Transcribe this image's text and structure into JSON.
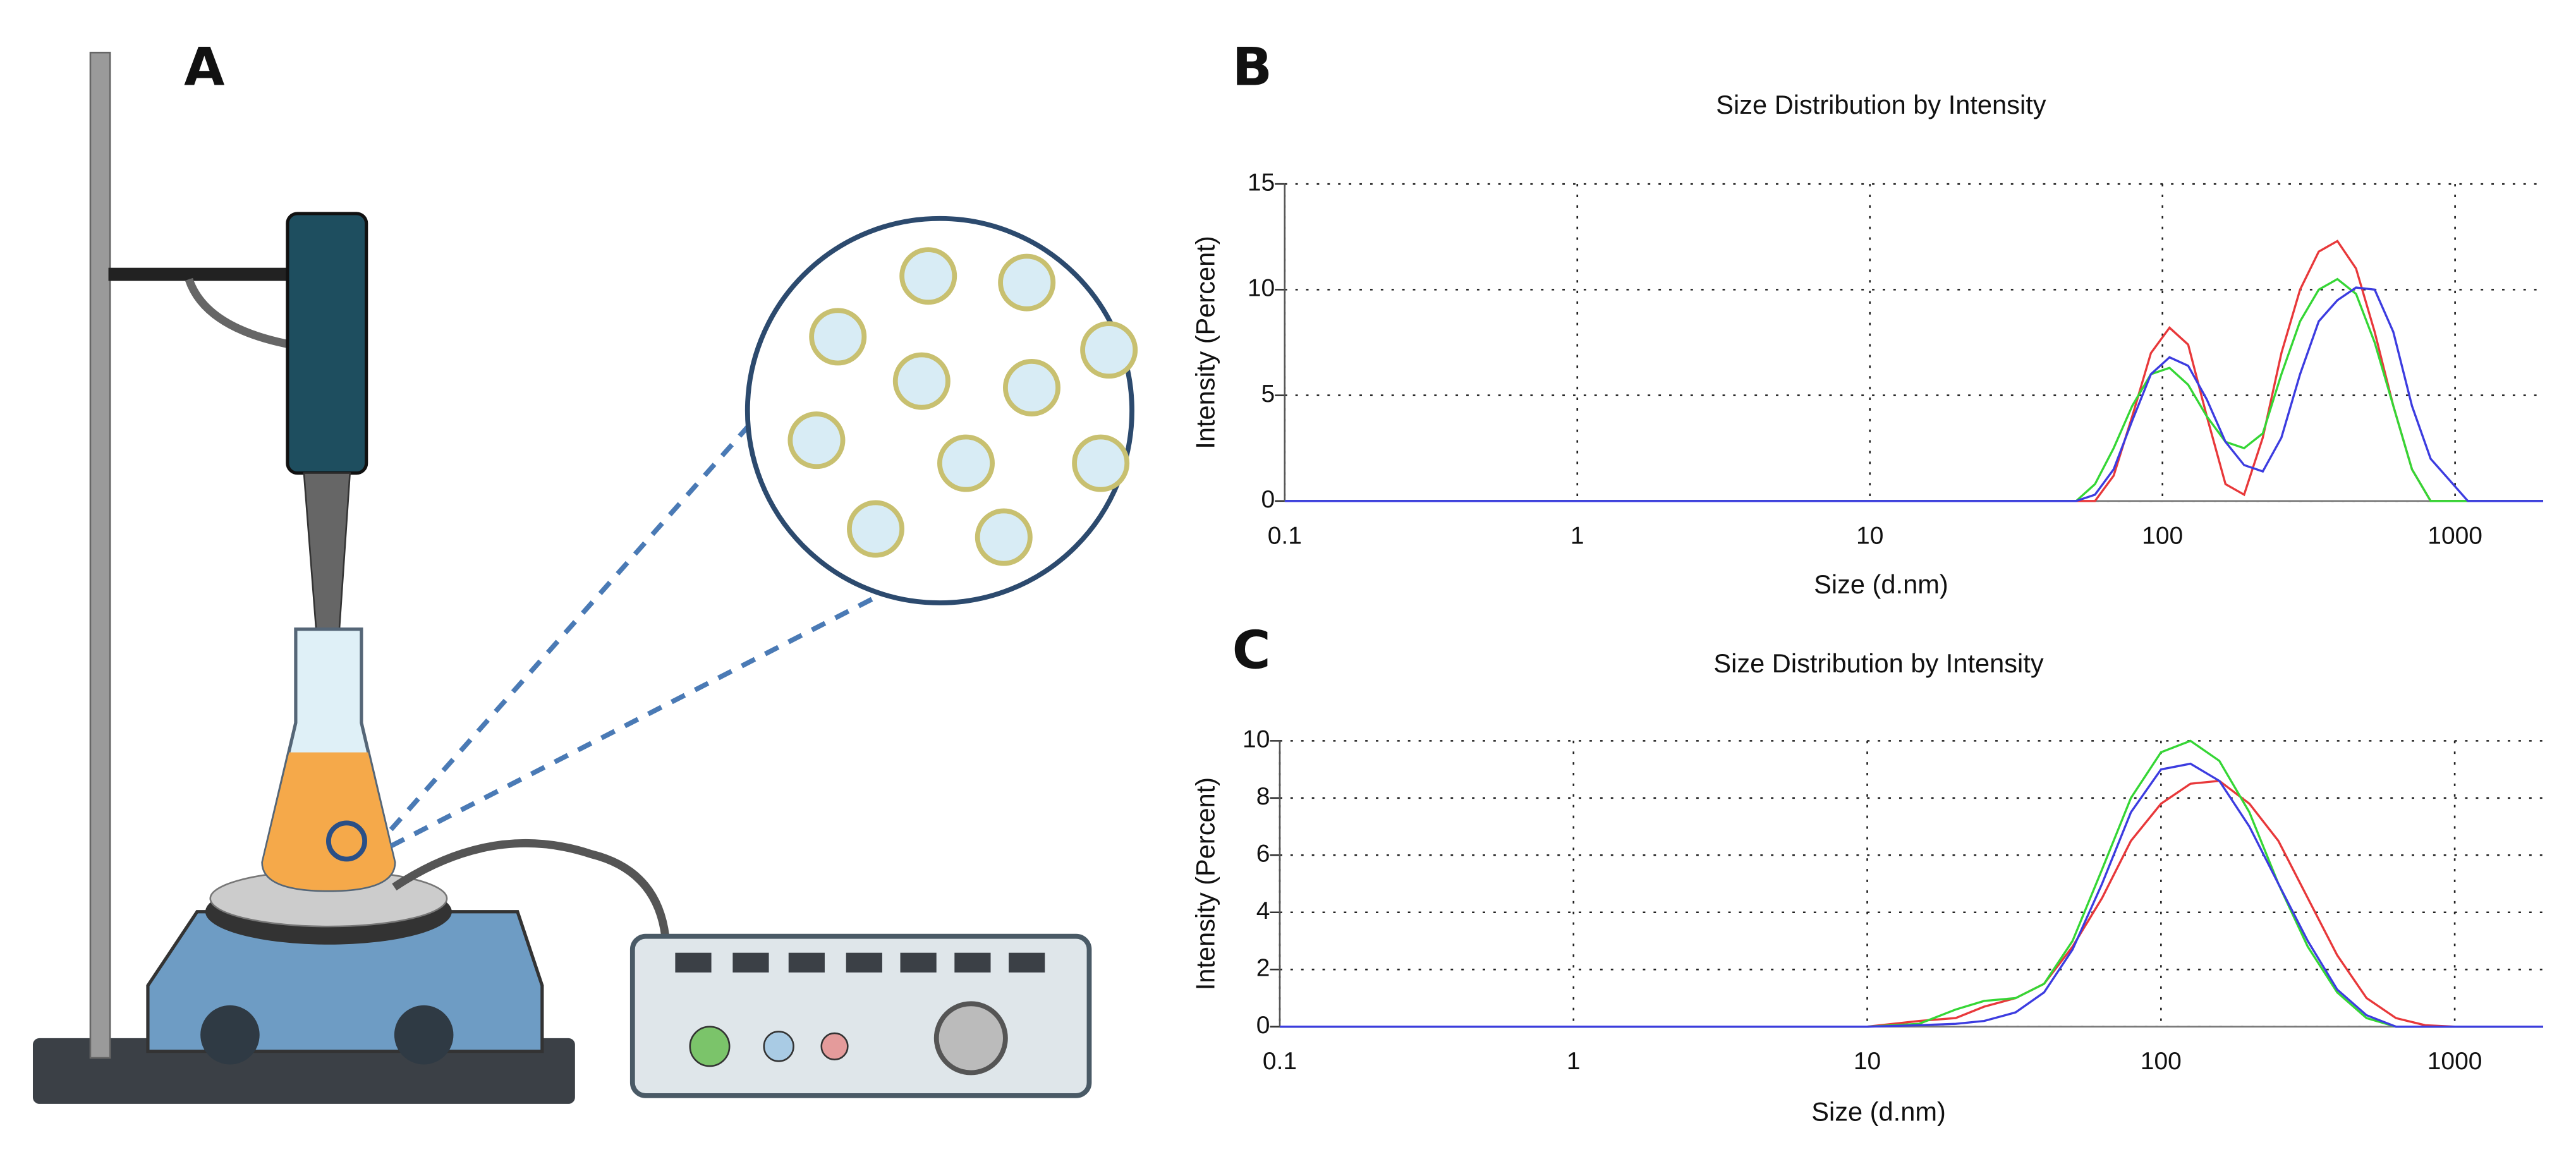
{
  "illustration": {
    "label": "A"
  },
  "chart_data": [
    {
      "type": "line",
      "panel": "B",
      "title": "Size Distribution by Intensity",
      "x_label": "Size (d.nm)",
      "y_label": "Intensity (Percent)",
      "xscale": "log",
      "xlim": [
        0.1,
        2000
      ],
      "xticks": [
        0.1,
        1,
        10,
        100,
        1000
      ],
      "ylim": [
        0,
        15
      ],
      "yticks": [
        0,
        5,
        10,
        15
      ],
      "grid": true,
      "x": [
        0.1,
        50.7,
        58.8,
        68.1,
        78.8,
        91.3,
        105.7,
        122.4,
        141.8,
        164.2,
        190.1,
        220.2,
        255.0,
        295.3,
        342.0,
        396.1,
        458.7,
        531.2,
        615.1,
        712.4,
        825.0,
        955.4,
        1106,
        2000
      ],
      "series": [
        {
          "color": "#e8383a",
          "values": [
            0,
            0,
            0,
            1.2,
            4.0,
            7.0,
            8.2,
            7.4,
            4.0,
            0.8,
            0.3,
            3.0,
            7.0,
            10.0,
            11.8,
            12.3,
            11.0,
            8.0,
            4.5,
            1.5,
            0,
            0,
            0,
            0
          ]
        },
        {
          "color": "#35d635",
          "values": [
            0,
            0,
            0.8,
            2.5,
            4.5,
            6.0,
            6.3,
            5.5,
            4.0,
            2.8,
            2.5,
            3.2,
            6.0,
            8.5,
            10.0,
            10.5,
            9.8,
            7.5,
            4.5,
            1.5,
            0,
            0,
            0,
            0
          ]
        },
        {
          "color": "#3c3ce0",
          "values": [
            0,
            0,
            0.3,
            1.5,
            3.8,
            6.0,
            6.8,
            6.4,
            4.8,
            2.8,
            1.7,
            1.4,
            3.0,
            6.0,
            8.5,
            9.5,
            10.1,
            10.0,
            8.0,
            4.5,
            2.0,
            1.0,
            0,
            0
          ]
        }
      ]
    },
    {
      "type": "line",
      "panel": "C",
      "title": "Size Distribution by Intensity",
      "x_label": "Size (d.nm)",
      "y_label": "Intensity (Percent)",
      "xscale": "log",
      "xlim": [
        0.1,
        2000
      ],
      "xticks": [
        0.1,
        1,
        10,
        100,
        1000
      ],
      "ylim": [
        0,
        10
      ],
      "yticks": [
        0,
        2,
        4,
        6,
        8,
        10
      ],
      "grid": true,
      "x": [
        0.1,
        10,
        15,
        20,
        25,
        32,
        40,
        50,
        63,
        79,
        100,
        126,
        158,
        200,
        251,
        316,
        398,
        501,
        631,
        794,
        1000,
        2000
      ],
      "series": [
        {
          "color": "#e8383a",
          "values": [
            0,
            0,
            0.2,
            0.3,
            0.7,
            1.0,
            1.5,
            2.8,
            4.5,
            6.5,
            7.8,
            8.5,
            8.6,
            7.8,
            6.5,
            4.5,
            2.5,
            1.0,
            0.3,
            0.05,
            0,
            0
          ]
        },
        {
          "color": "#35d635",
          "values": [
            0,
            0,
            0.1,
            0.6,
            0.9,
            1.0,
            1.5,
            3.0,
            5.5,
            8.0,
            9.6,
            10.0,
            9.3,
            7.5,
            5.0,
            2.8,
            1.2,
            0.3,
            0,
            0,
            0,
            0
          ]
        },
        {
          "color": "#3c3ce0",
          "values": [
            0,
            0,
            0.05,
            0.1,
            0.2,
            0.5,
            1.2,
            2.7,
            5.0,
            7.5,
            9.0,
            9.2,
            8.6,
            7.0,
            5.0,
            3.0,
            1.3,
            0.4,
            0,
            0,
            0,
            0
          ]
        }
      ]
    }
  ]
}
